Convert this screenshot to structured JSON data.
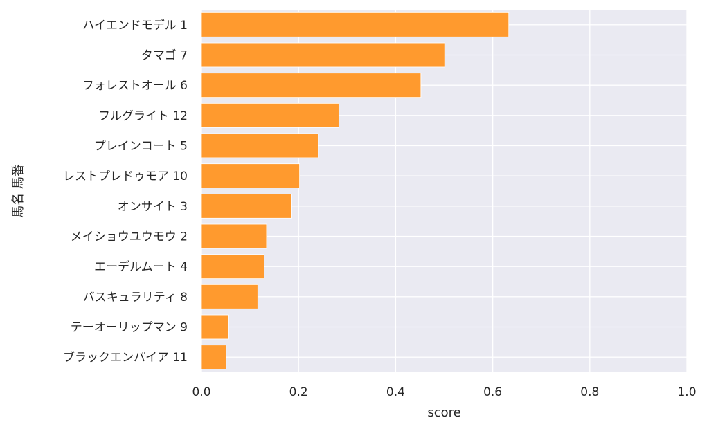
{
  "chart_data": {
    "type": "bar",
    "orientation": "horizontal",
    "xlabel": "score",
    "ylabel": "馬名 馬番",
    "xlim": [
      0,
      1.0
    ],
    "x_ticks": [
      "0.0",
      "0.2",
      "0.4",
      "0.6",
      "0.8",
      "1.0"
    ],
    "categories": [
      "ハイエンドモデル 1",
      "タマゴ 7",
      "フォレストオール 6",
      "フルグライト 12",
      "プレインコート 5",
      "レストプレドゥモア 10",
      "オンサイト 3",
      "メイショウユウモウ 2",
      "エーデルムート 4",
      "バスキュラリティ 8",
      "テーオーリップマン 9",
      "ブラックエンパイア 11"
    ],
    "values": [
      0.633,
      0.501,
      0.452,
      0.283,
      0.241,
      0.202,
      0.186,
      0.134,
      0.129,
      0.116,
      0.056,
      0.051
    ],
    "bar_color": "#ff9a2e",
    "background_color": "#eaeaf2",
    "grid": true
  }
}
